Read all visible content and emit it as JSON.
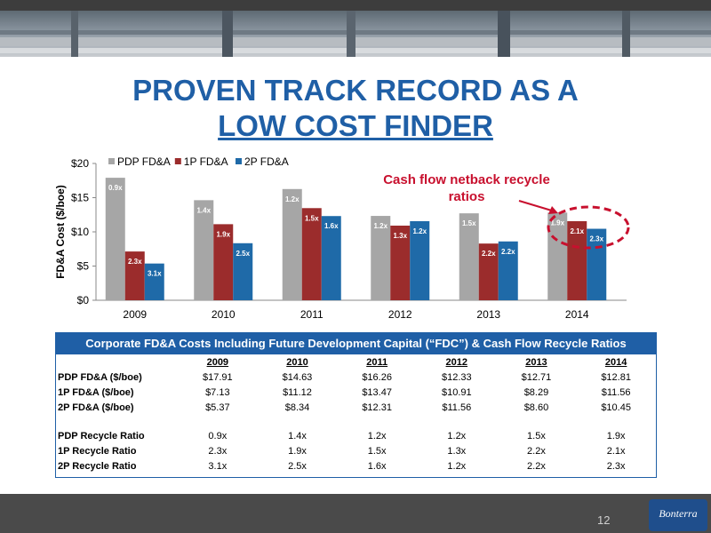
{
  "header": {
    "title_line1": "PROVEN TRACK RECORD AS A",
    "title_line2": "LOW COST FINDER"
  },
  "callout": {
    "text": "Cash flow netback recycle ratios"
  },
  "colors": {
    "title": "#1f5fa6",
    "pdp": "#a6a6a6",
    "p1": "#9b2c2c",
    "p2": "#1f6aa8",
    "callout": "#c8102e"
  },
  "chart_data": {
    "type": "bar",
    "categories": [
      "2009",
      "2010",
      "2011",
      "2012",
      "2013",
      "2014"
    ],
    "series": [
      {
        "name": "PDP FD&A",
        "values": [
          17.91,
          14.63,
          16.26,
          12.33,
          12.71,
          12.81
        ],
        "labels": [
          "0.9x",
          "1.4x",
          "1.2x",
          "1.2x",
          "1.5x",
          "1.9x"
        ],
        "color": "#a6a6a6"
      },
      {
        "name": "1P FD&A",
        "values": [
          7.13,
          11.12,
          13.47,
          10.91,
          8.29,
          11.56
        ],
        "labels": [
          "2.3x",
          "1.9x",
          "1.5x",
          "1.3x",
          "2.2x",
          "2.1x"
        ],
        "color": "#9b2c2c"
      },
      {
        "name": "2P FD&A",
        "values": [
          5.37,
          8.34,
          12.31,
          11.56,
          8.6,
          10.45
        ],
        "labels": [
          "3.1x",
          "2.5x",
          "1.6x",
          "1.2x",
          "2.2x",
          "2.3x"
        ],
        "color": "#1f6aa8"
      }
    ],
    "ylabel": "FD&A Cost ($/boe)",
    "ylim": [
      0,
      20
    ],
    "yticks": [
      0,
      5,
      10,
      15,
      20
    ],
    "ytick_labels": [
      "$0",
      "$5",
      "$10",
      "$15",
      "$20"
    ],
    "legend": "top-left",
    "grid": false
  },
  "table": {
    "title": "Corporate FD&A Costs Including Future Development Capital (“FDC”) & Cash Flow Recycle Ratios",
    "years": [
      "2009",
      "2010",
      "2011",
      "2012",
      "2013",
      "2014"
    ],
    "rows": [
      {
        "label": "PDP FD&A ($/boe)",
        "values": [
          "$17.91",
          "$14.63",
          "$16.26",
          "$12.33",
          "$12.71",
          "$12.81"
        ]
      },
      {
        "label": "1P FD&A ($/boe)",
        "values": [
          "$7.13",
          "$11.12",
          "$13.47",
          "$10.91",
          "$8.29",
          "$11.56"
        ]
      },
      {
        "label": "2P FD&A ($/boe)",
        "values": [
          "$5.37",
          "$8.34",
          "$12.31",
          "$11.56",
          "$8.60",
          "$10.45"
        ]
      },
      {
        "label": "PDP Recycle Ratio",
        "values": [
          "0.9x",
          "1.4x",
          "1.2x",
          "1.2x",
          "1.5x",
          "1.9x"
        ]
      },
      {
        "label": "1P Recycle Ratio",
        "values": [
          "2.3x",
          "1.9x",
          "1.5x",
          "1.3x",
          "2.2x",
          "2.1x"
        ]
      },
      {
        "label": "2P Recycle Ratio",
        "values": [
          "3.1x",
          "2.5x",
          "1.6x",
          "1.2x",
          "2.2x",
          "2.3x"
        ]
      }
    ]
  },
  "footer": {
    "page_number": "12",
    "logo_text": "Bonterra"
  }
}
